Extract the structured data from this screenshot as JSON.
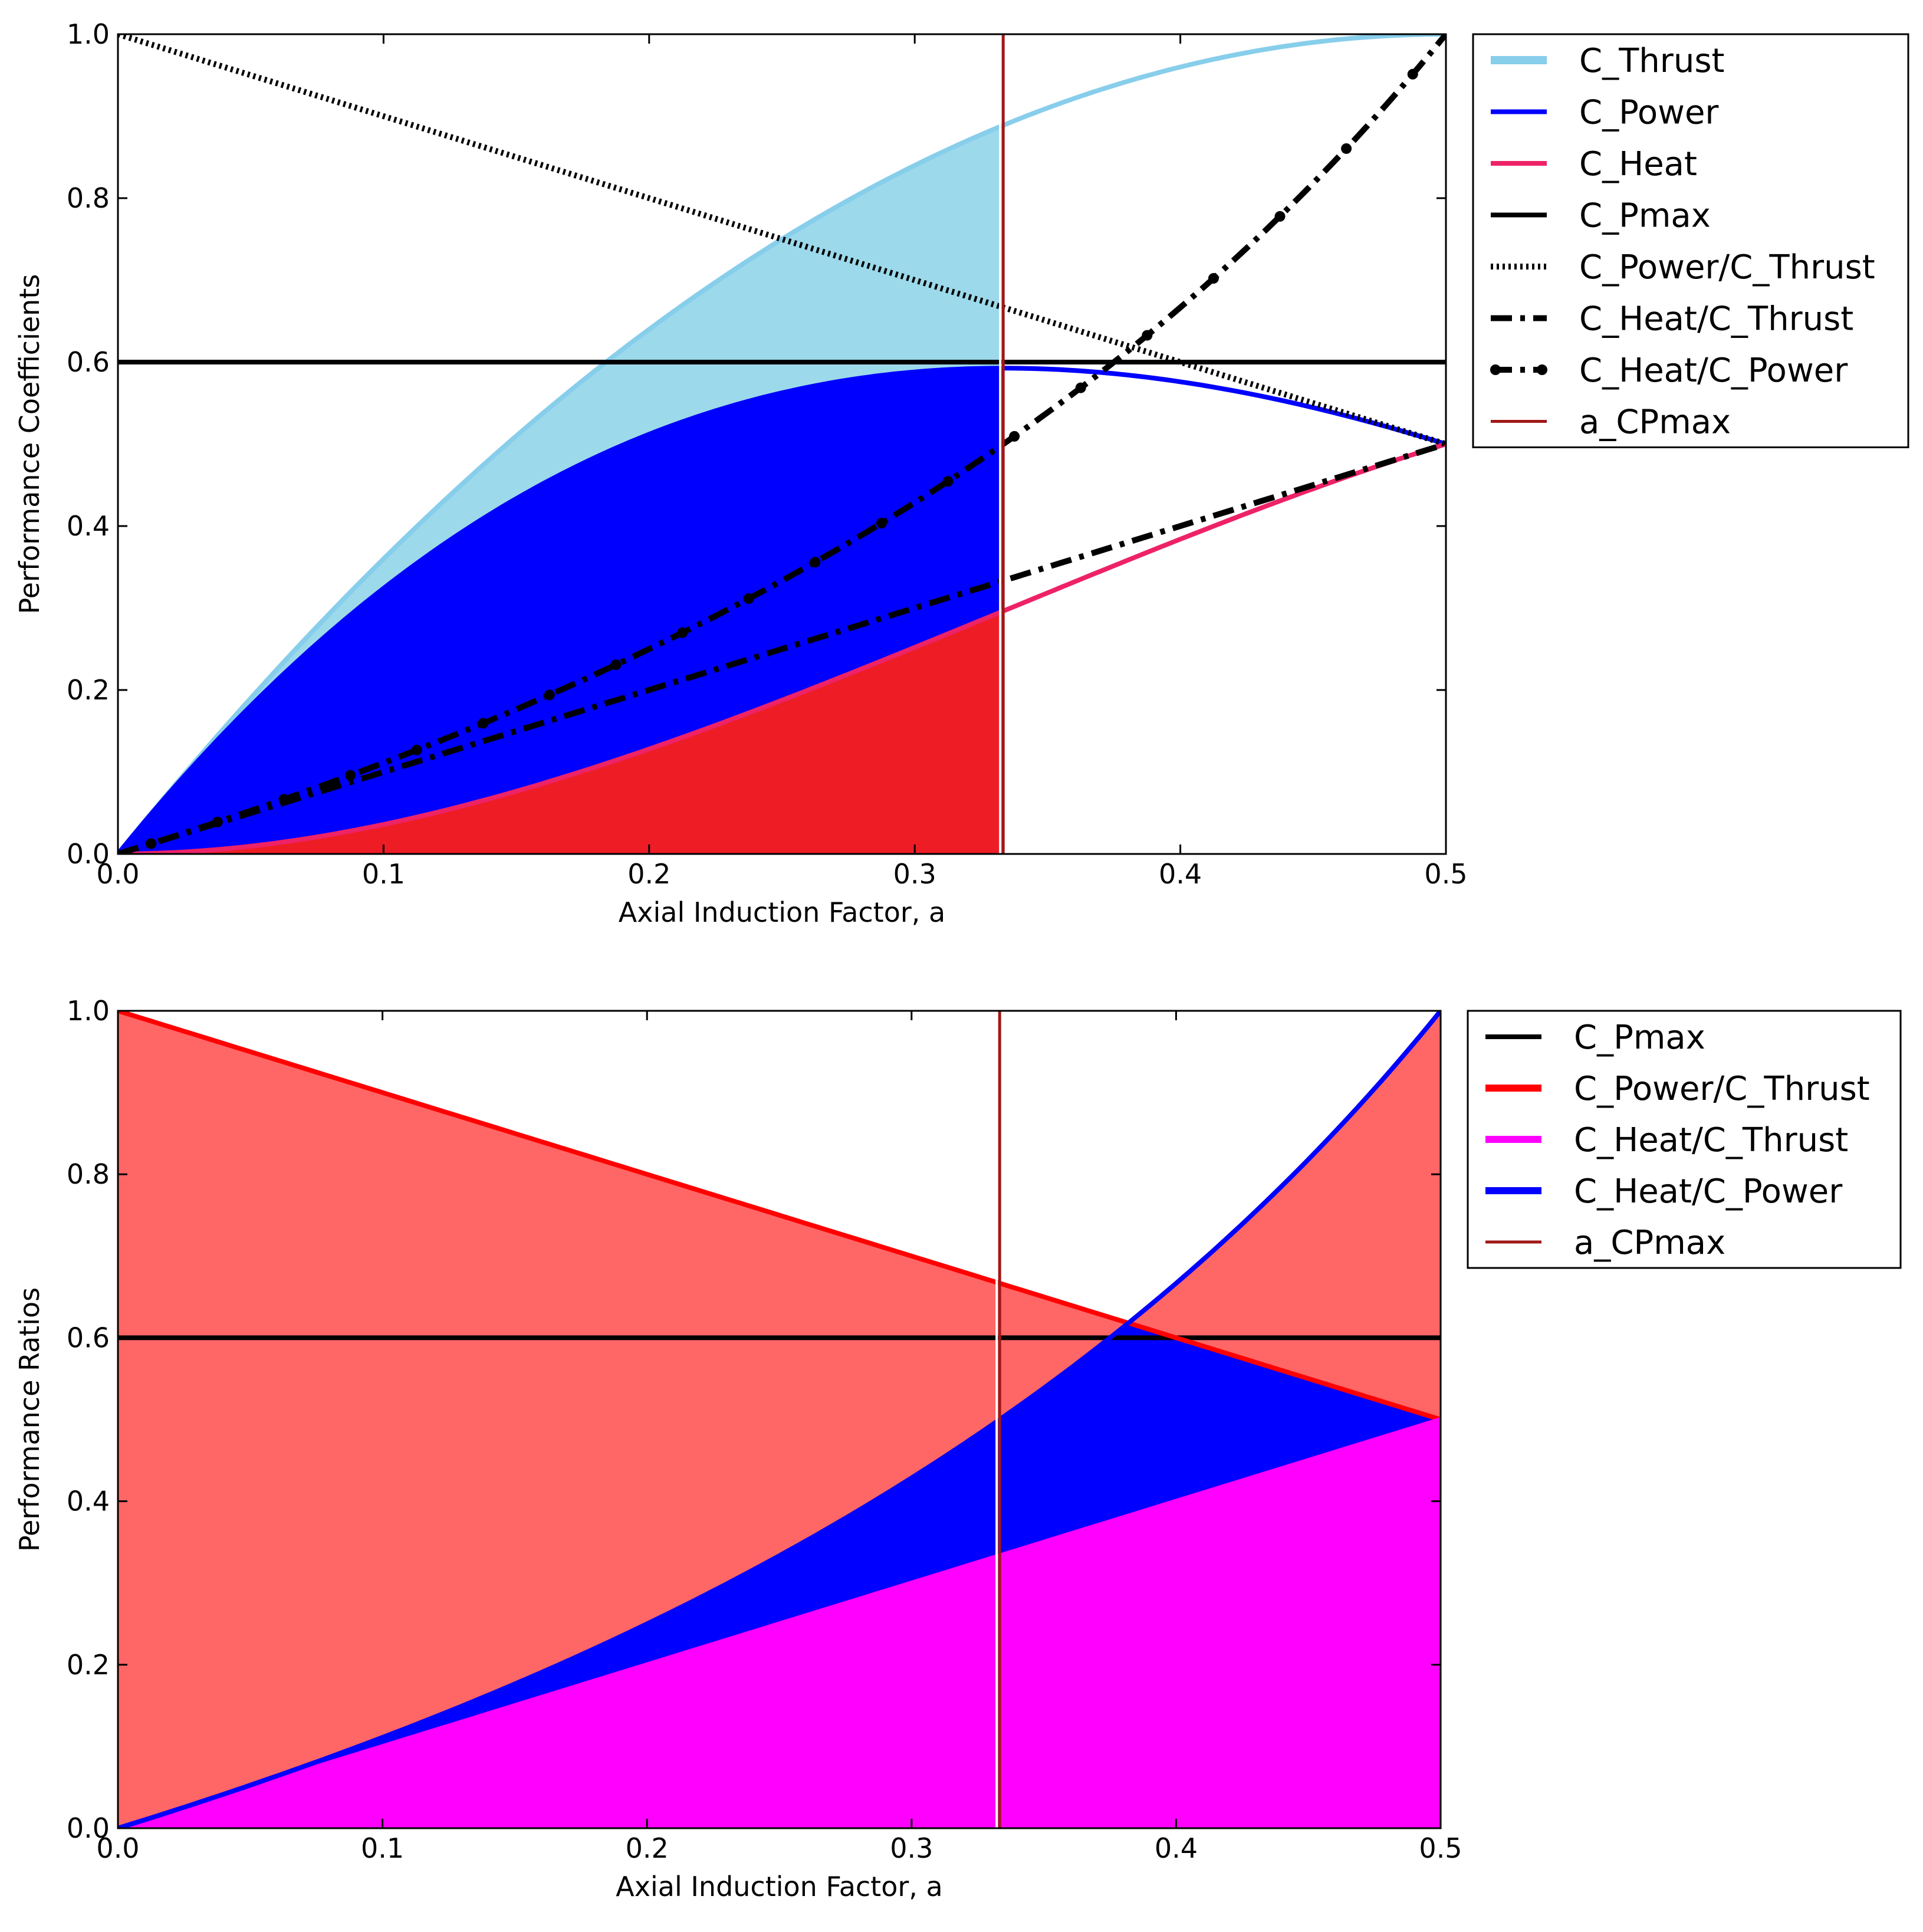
{
  "chart_data": [
    {
      "type": "line",
      "id": "top",
      "xlabel": "Axial Induction Factor, a",
      "ylabel": "Performance Coefficients",
      "xlim": [
        0,
        0.5
      ],
      "ylim": [
        0,
        1
      ],
      "xticks": [
        "0.0",
        "0.1",
        "0.2",
        "0.3",
        "0.4",
        "0.5"
      ],
      "yticks": [
        "0.0",
        "0.2",
        "0.4",
        "0.6",
        "0.8",
        "1.0"
      ],
      "fill_to_a": 0.3333,
      "series": [
        {
          "name": "C_Thrust",
          "formula": "4a(1-a)",
          "color": "#87ceeb",
          "style": "solid"
        },
        {
          "name": "C_Power",
          "formula": "4a(1-a)^2",
          "color": "#0000ff",
          "style": "solid"
        },
        {
          "name": "C_Heat",
          "formula": "4a^2(1-a)",
          "color": "#ee2266",
          "style": "solid"
        },
        {
          "name": "C_Pmax",
          "value": 0.6,
          "color": "#000000",
          "style": "solid"
        },
        {
          "name": "C_Power/C_Thrust",
          "formula": "1-a",
          "color": "#000000",
          "style": "dotted"
        },
        {
          "name": "C_Heat/C_Thrust",
          "formula": "a",
          "color": "#000000",
          "style": "dashdot"
        },
        {
          "name": "C_Heat/C_Power",
          "formula": "a/(1-a)",
          "color": "#000000",
          "style": "dashdot-marker"
        },
        {
          "name": "a_CPmax",
          "value": 0.3333,
          "color": "#a01818",
          "style": "vline"
        }
      ],
      "fills": [
        {
          "between": [
            "C_Power",
            "C_Thrust"
          ],
          "color": "#9cd9ea"
        },
        {
          "between": [
            "C_Heat",
            "C_Power"
          ],
          "color": "#0000ff"
        },
        {
          "between": [
            "zero",
            "C_Heat"
          ],
          "color": "#ee1c25"
        }
      ]
    },
    {
      "type": "line",
      "id": "bottom",
      "xlabel": "Axial Induction Factor, a",
      "ylabel": "Performance Ratios",
      "xlim": [
        0,
        0.5
      ],
      "ylim": [
        0,
        1
      ],
      "xticks": [
        "0.0",
        "0.1",
        "0.2",
        "0.3",
        "0.4",
        "0.5"
      ],
      "yticks": [
        "0.0",
        "0.2",
        "0.4",
        "0.6",
        "0.8",
        "1.0"
      ],
      "series": [
        {
          "name": "C_Pmax",
          "value": 0.6,
          "color": "#000000",
          "style": "solid"
        },
        {
          "name": "C_Power/C_Thrust",
          "formula": "1-a",
          "color": "#ff0000",
          "style": "solid"
        },
        {
          "name": "C_Heat/C_Thrust",
          "formula": "a",
          "color": "#ff00ff",
          "style": "solid"
        },
        {
          "name": "C_Heat/C_Power",
          "formula": "a/(1-a)",
          "color": "#0000ff",
          "style": "solid"
        },
        {
          "name": "a_CPmax",
          "value": 0.3333,
          "color": "#a01818",
          "style": "vline"
        }
      ],
      "fills": [
        {
          "between": [
            "zero",
            "C_Heat/C_Thrust"
          ],
          "color": "#ff00ff"
        },
        {
          "between": [
            "C_Heat/C_Thrust",
            "C_Heat/C_Power"
          ],
          "color": "#0000ff"
        },
        {
          "between": [
            "C_Heat/C_Power",
            "C_Power/C_Thrust"
          ],
          "color": "#ff6666"
        }
      ]
    }
  ]
}
